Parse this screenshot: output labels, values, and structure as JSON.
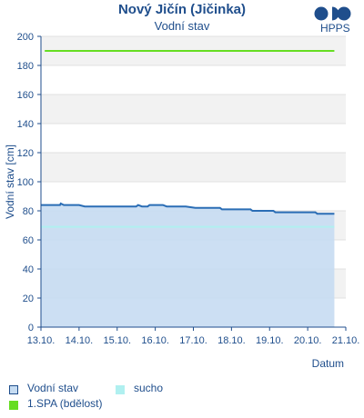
{
  "header": {
    "title": "Nový Jičín (Jičinka)",
    "subtitle": "Vodní stav",
    "logo_text": "HPPS"
  },
  "chart_data": {
    "type": "area",
    "ylabel": "Vodní stav [cm]",
    "xlabel": "Datum",
    "ylim": [
      0,
      200
    ],
    "yticks": [
      0,
      20,
      40,
      60,
      80,
      100,
      120,
      140,
      160,
      180,
      200
    ],
    "xticks": [
      "13.10.",
      "14.10.",
      "15.10.",
      "16.10.",
      "17.10.",
      "18.10.",
      "19.10.",
      "20.10.",
      "21.10."
    ],
    "xlim_days": [
      0,
      8
    ],
    "grid": "horizontal bands",
    "legend_position": "bottom-left",
    "series": [
      {
        "name": "Vodní stav",
        "color": "#2a6db5",
        "fill": "#c6dcf2",
        "points": [
          {
            "x": 0.0,
            "y": 84
          },
          {
            "x": 0.5,
            "y": 84
          },
          {
            "x": 0.52,
            "y": 85
          },
          {
            "x": 0.6,
            "y": 84
          },
          {
            "x": 1.0,
            "y": 84
          },
          {
            "x": 1.15,
            "y": 83
          },
          {
            "x": 2.5,
            "y": 83
          },
          {
            "x": 2.55,
            "y": 84
          },
          {
            "x": 2.65,
            "y": 83
          },
          {
            "x": 2.8,
            "y": 83
          },
          {
            "x": 2.85,
            "y": 84
          },
          {
            "x": 3.2,
            "y": 84
          },
          {
            "x": 3.3,
            "y": 83
          },
          {
            "x": 3.8,
            "y": 83
          },
          {
            "x": 4.05,
            "y": 82
          },
          {
            "x": 4.7,
            "y": 82
          },
          {
            "x": 4.75,
            "y": 81
          },
          {
            "x": 5.5,
            "y": 81
          },
          {
            "x": 5.55,
            "y": 80
          },
          {
            "x": 6.1,
            "y": 80
          },
          {
            "x": 6.15,
            "y": 79
          },
          {
            "x": 7.2,
            "y": 79
          },
          {
            "x": 7.25,
            "y": 78
          },
          {
            "x": 7.7,
            "y": 78
          }
        ]
      },
      {
        "name": "sucho",
        "color": "#b0f0f0",
        "value": 69
      },
      {
        "name": "1.SPA (bdělost)",
        "color": "#66dd22",
        "value": 190
      }
    ]
  },
  "legend": {
    "items": [
      {
        "label": "Vodní stav",
        "color": "#c6dcf2",
        "border": "#1f4e8c"
      },
      {
        "label": "sucho",
        "color": "#b0f0f0"
      },
      {
        "label": "1.SPA (bdělost)",
        "color": "#66dd22"
      }
    ]
  }
}
